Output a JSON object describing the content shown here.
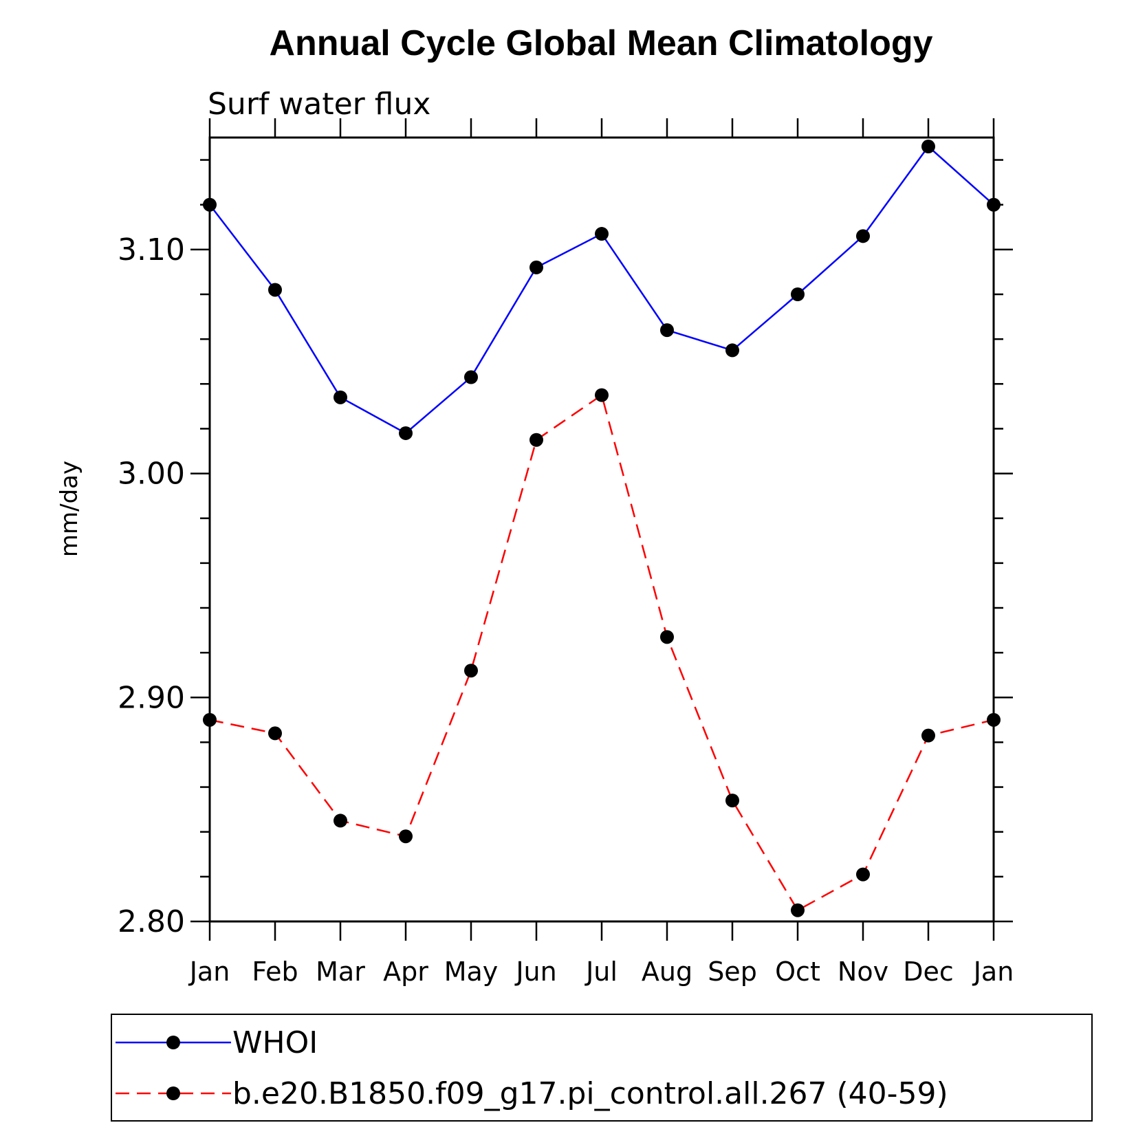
{
  "chart_data": {
    "type": "line",
    "title": "Annual Cycle Global Mean Climatology",
    "subtitle": "Surf water flux",
    "ylabel": "mm/day",
    "xlabel": "",
    "categories": [
      "Jan",
      "Feb",
      "Mar",
      "Apr",
      "May",
      "Jun",
      "Jul",
      "Aug",
      "Sep",
      "Oct",
      "Nov",
      "Dec",
      "Jan"
    ],
    "ylim": [
      2.8,
      3.15
    ],
    "yticks": [
      "2.80",
      "2.90",
      "3.00",
      "3.10"
    ],
    "yminor_step": 0.02,
    "grid": false,
    "legend_position": "bottom",
    "series": [
      {
        "name": "WHOI",
        "color": "#0000ff",
        "line_style": "solid",
        "marker": "filled-circle",
        "values": [
          3.12,
          3.082,
          3.034,
          3.018,
          3.043,
          3.092,
          3.107,
          3.064,
          3.055,
          3.08,
          3.106,
          3.146,
          3.12
        ]
      },
      {
        "name": "b.e20.B1850.f09_g17.pi_control.all.267 (40-59)",
        "color": "#ff0000",
        "line_style": "dashed",
        "marker": "filled-circle",
        "values": [
          2.89,
          2.884,
          2.845,
          2.838,
          2.912,
          3.015,
          3.035,
          2.927,
          2.854,
          2.805,
          2.821,
          2.883,
          2.89
        ]
      }
    ]
  }
}
